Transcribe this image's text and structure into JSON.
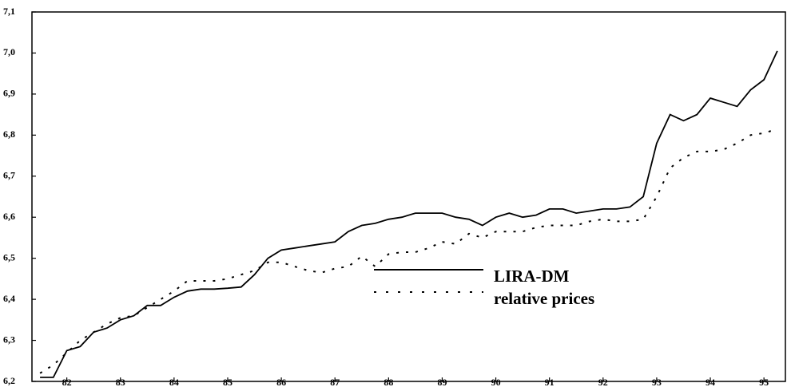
{
  "chart_data": {
    "type": "line",
    "x": [
      81.5,
      81.75,
      82,
      82.25,
      82.5,
      82.75,
      83,
      83.25,
      83.5,
      83.75,
      84,
      84.25,
      84.5,
      84.75,
      85,
      85.25,
      85.5,
      85.75,
      86,
      86.25,
      86.5,
      86.75,
      87,
      87.25,
      87.5,
      87.75,
      88,
      88.25,
      88.5,
      88.75,
      89,
      89.25,
      89.5,
      89.75,
      90,
      90.25,
      90.5,
      90.75,
      91,
      91.25,
      91.5,
      91.75,
      92,
      92.25,
      92.5,
      92.75,
      93,
      93.25,
      93.5,
      93.75,
      94,
      94.25,
      94.5,
      94.75,
      95,
      95.25
    ],
    "series": [
      {
        "name": "LIRA-DM",
        "color": "#000000",
        "dash": "solid",
        "values": [
          6.21,
          6.21,
          6.275,
          6.285,
          6.32,
          6.33,
          6.35,
          6.36,
          6.385,
          6.385,
          6.405,
          6.42,
          6.425,
          6.425,
          6.427,
          6.43,
          6.46,
          6.5,
          6.52,
          6.525,
          6.53,
          6.535,
          6.54,
          6.565,
          6.58,
          6.585,
          6.595,
          6.6,
          6.61,
          6.61,
          6.61,
          6.6,
          6.595,
          6.58,
          6.6,
          6.61,
          6.6,
          6.605,
          6.62,
          6.62,
          6.61,
          6.615,
          6.62,
          6.62,
          6.625,
          6.65,
          6.78,
          6.85,
          6.835,
          6.85,
          6.89,
          6.88,
          6.87,
          6.91,
          6.935,
          7.005
        ]
      },
      {
        "name": "relative prices",
        "color": "#000000",
        "dash": "dotted",
        "values": [
          6.22,
          6.24,
          6.27,
          6.3,
          6.32,
          6.34,
          6.355,
          6.36,
          6.38,
          6.4,
          6.42,
          6.445,
          6.445,
          6.445,
          6.45,
          6.46,
          6.47,
          6.49,
          6.49,
          6.48,
          6.47,
          6.465,
          6.475,
          6.48,
          6.505,
          6.48,
          6.51,
          6.515,
          6.515,
          6.525,
          6.54,
          6.535,
          6.56,
          6.55,
          6.565,
          6.565,
          6.565,
          6.575,
          6.58,
          6.58,
          6.58,
          6.59,
          6.595,
          6.59,
          6.59,
          6.595,
          6.65,
          6.72,
          6.745,
          6.76,
          6.76,
          6.765,
          6.78,
          6.8,
          6.805,
          6.815
        ]
      }
    ],
    "xlim": [
      81.35,
      95.4
    ],
    "xticks": [
      82,
      83,
      84,
      85,
      86,
      87,
      88,
      89,
      90,
      91,
      92,
      93,
      94,
      95
    ],
    "ylim": [
      6.2,
      7.1
    ],
    "yticks": [
      {
        "value": 6.2,
        "label": "6,2"
      },
      {
        "value": 6.3,
        "label": "6,3"
      },
      {
        "value": 6.4,
        "label": "6,4"
      },
      {
        "value": 6.5,
        "label": "6,5"
      },
      {
        "value": 6.6,
        "label": "6,6"
      },
      {
        "value": 6.7,
        "label": "6,7"
      },
      {
        "value": 6.8,
        "label": "6,8"
      },
      {
        "value": 6.9,
        "label": "6,9"
      },
      {
        "value": 7.0,
        "label": "7,0"
      },
      {
        "value": 7.1,
        "label": "7,1"
      }
    ],
    "grid": false
  }
}
